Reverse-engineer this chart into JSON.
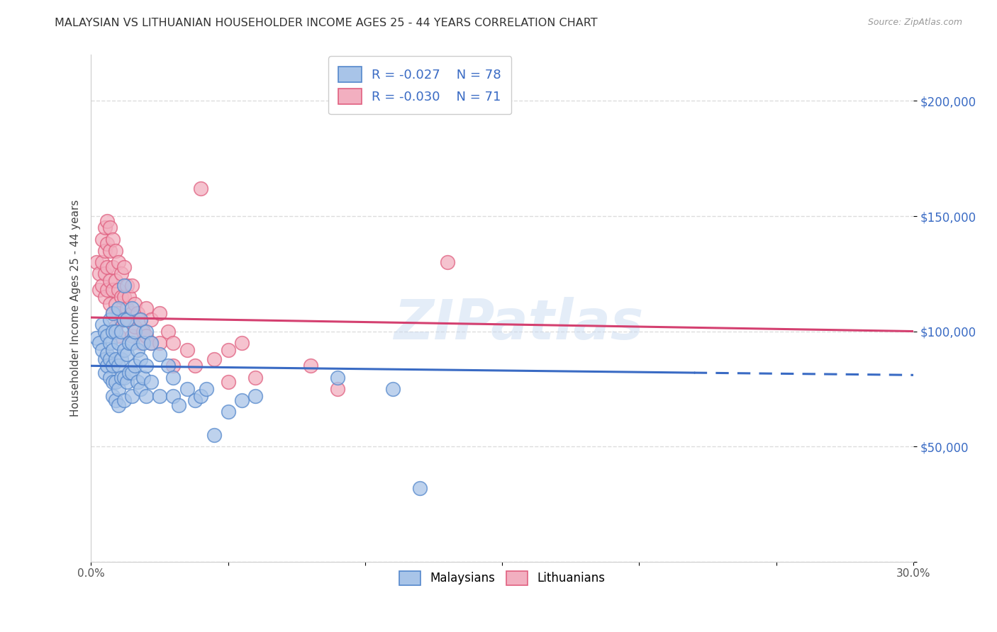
{
  "title": "MALAYSIAN VS LITHUANIAN HOUSEHOLDER INCOME AGES 25 - 44 YEARS CORRELATION CHART",
  "source": "Source: ZipAtlas.com",
  "ylabel": "Householder Income Ages 25 - 44 years",
  "xlim": [
    0.0,
    0.3
  ],
  "ylim": [
    0,
    220000
  ],
  "yticks": [
    0,
    50000,
    100000,
    150000,
    200000
  ],
  "ytick_labels": [
    "",
    "$50,000",
    "$100,000",
    "$150,000",
    "$200,000"
  ],
  "xticks": [
    0.0,
    0.05,
    0.1,
    0.15,
    0.2,
    0.25,
    0.3
  ],
  "xtick_labels": [
    "0.0%",
    "",
    "",
    "",
    "",
    "",
    "30.0%"
  ],
  "legend_blue_r": "-0.027",
  "legend_blue_n": "78",
  "legend_pink_r": "-0.030",
  "legend_pink_n": "71",
  "blue_color": "#a8c4e8",
  "pink_color": "#f2afc0",
  "blue_edge_color": "#5588cc",
  "pink_edge_color": "#e06080",
  "blue_line_color": "#3a6bc4",
  "pink_line_color": "#d44070",
  "label_color": "#3a6bc4",
  "blue_scatter": [
    [
      0.002,
      97000
    ],
    [
      0.003,
      95000
    ],
    [
      0.004,
      103000
    ],
    [
      0.004,
      92000
    ],
    [
      0.005,
      100000
    ],
    [
      0.005,
      88000
    ],
    [
      0.005,
      82000
    ],
    [
      0.006,
      98000
    ],
    [
      0.006,
      90000
    ],
    [
      0.006,
      85000
    ],
    [
      0.007,
      105000
    ],
    [
      0.007,
      95000
    ],
    [
      0.007,
      88000
    ],
    [
      0.007,
      80000
    ],
    [
      0.008,
      108000
    ],
    [
      0.008,
      100000
    ],
    [
      0.008,
      92000
    ],
    [
      0.008,
      85000
    ],
    [
      0.008,
      78000
    ],
    [
      0.008,
      72000
    ],
    [
      0.009,
      100000
    ],
    [
      0.009,
      88000
    ],
    [
      0.009,
      78000
    ],
    [
      0.009,
      70000
    ],
    [
      0.01,
      110000
    ],
    [
      0.01,
      95000
    ],
    [
      0.01,
      85000
    ],
    [
      0.01,
      75000
    ],
    [
      0.01,
      68000
    ],
    [
      0.011,
      100000
    ],
    [
      0.011,
      88000
    ],
    [
      0.011,
      80000
    ],
    [
      0.012,
      120000
    ],
    [
      0.012,
      105000
    ],
    [
      0.012,
      92000
    ],
    [
      0.012,
      80000
    ],
    [
      0.012,
      70000
    ],
    [
      0.013,
      105000
    ],
    [
      0.013,
      90000
    ],
    [
      0.013,
      78000
    ],
    [
      0.014,
      95000
    ],
    [
      0.014,
      82000
    ],
    [
      0.015,
      110000
    ],
    [
      0.015,
      95000
    ],
    [
      0.015,
      82000
    ],
    [
      0.015,
      72000
    ],
    [
      0.016,
      100000
    ],
    [
      0.016,
      85000
    ],
    [
      0.017,
      92000
    ],
    [
      0.017,
      78000
    ],
    [
      0.018,
      105000
    ],
    [
      0.018,
      88000
    ],
    [
      0.018,
      75000
    ],
    [
      0.019,
      95000
    ],
    [
      0.019,
      80000
    ],
    [
      0.02,
      100000
    ],
    [
      0.02,
      85000
    ],
    [
      0.02,
      72000
    ],
    [
      0.022,
      95000
    ],
    [
      0.022,
      78000
    ],
    [
      0.025,
      90000
    ],
    [
      0.025,
      72000
    ],
    [
      0.028,
      85000
    ],
    [
      0.03,
      80000
    ],
    [
      0.03,
      72000
    ],
    [
      0.032,
      68000
    ],
    [
      0.035,
      75000
    ],
    [
      0.038,
      70000
    ],
    [
      0.04,
      72000
    ],
    [
      0.042,
      75000
    ],
    [
      0.045,
      55000
    ],
    [
      0.05,
      65000
    ],
    [
      0.055,
      70000
    ],
    [
      0.06,
      72000
    ],
    [
      0.09,
      80000
    ],
    [
      0.11,
      75000
    ],
    [
      0.12,
      32000
    ]
  ],
  "pink_scatter": [
    [
      0.002,
      130000
    ],
    [
      0.003,
      125000
    ],
    [
      0.003,
      118000
    ],
    [
      0.004,
      140000
    ],
    [
      0.004,
      130000
    ],
    [
      0.004,
      120000
    ],
    [
      0.005,
      145000
    ],
    [
      0.005,
      135000
    ],
    [
      0.005,
      125000
    ],
    [
      0.005,
      115000
    ],
    [
      0.006,
      148000
    ],
    [
      0.006,
      138000
    ],
    [
      0.006,
      128000
    ],
    [
      0.006,
      118000
    ],
    [
      0.007,
      145000
    ],
    [
      0.007,
      135000
    ],
    [
      0.007,
      122000
    ],
    [
      0.007,
      112000
    ],
    [
      0.008,
      140000
    ],
    [
      0.008,
      128000
    ],
    [
      0.008,
      118000
    ],
    [
      0.008,
      108000
    ],
    [
      0.009,
      135000
    ],
    [
      0.009,
      122000
    ],
    [
      0.009,
      112000
    ],
    [
      0.009,
      102000
    ],
    [
      0.01,
      130000
    ],
    [
      0.01,
      118000
    ],
    [
      0.01,
      108000
    ],
    [
      0.01,
      98000
    ],
    [
      0.011,
      125000
    ],
    [
      0.011,
      115000
    ],
    [
      0.011,
      105000
    ],
    [
      0.012,
      128000
    ],
    [
      0.012,
      115000
    ],
    [
      0.012,
      105000
    ],
    [
      0.013,
      120000
    ],
    [
      0.013,
      110000
    ],
    [
      0.014,
      115000
    ],
    [
      0.014,
      105000
    ],
    [
      0.015,
      120000
    ],
    [
      0.015,
      108000
    ],
    [
      0.015,
      98000
    ],
    [
      0.016,
      112000
    ],
    [
      0.016,
      102000
    ],
    [
      0.017,
      108000
    ],
    [
      0.018,
      105000
    ],
    [
      0.018,
      95000
    ],
    [
      0.019,
      100000
    ],
    [
      0.02,
      110000
    ],
    [
      0.02,
      98000
    ],
    [
      0.022,
      105000
    ],
    [
      0.022,
      95000
    ],
    [
      0.025,
      108000
    ],
    [
      0.025,
      95000
    ],
    [
      0.028,
      100000
    ],
    [
      0.03,
      95000
    ],
    [
      0.03,
      85000
    ],
    [
      0.035,
      92000
    ],
    [
      0.038,
      85000
    ],
    [
      0.04,
      162000
    ],
    [
      0.045,
      88000
    ],
    [
      0.05,
      92000
    ],
    [
      0.05,
      78000
    ],
    [
      0.055,
      95000
    ],
    [
      0.06,
      80000
    ],
    [
      0.08,
      85000
    ],
    [
      0.09,
      75000
    ],
    [
      0.13,
      130000
    ]
  ],
  "blue_trendline_solid": [
    [
      0.0,
      85000
    ],
    [
      0.22,
      82000
    ]
  ],
  "blue_trendline_dashed": [
    [
      0.22,
      82000
    ],
    [
      0.3,
      81000
    ]
  ],
  "pink_trendline": [
    [
      0.0,
      106000
    ],
    [
      0.3,
      100000
    ]
  ],
  "watermark": "ZIPatlas",
  "background_color": "#ffffff",
  "grid_color": "#dddddd"
}
